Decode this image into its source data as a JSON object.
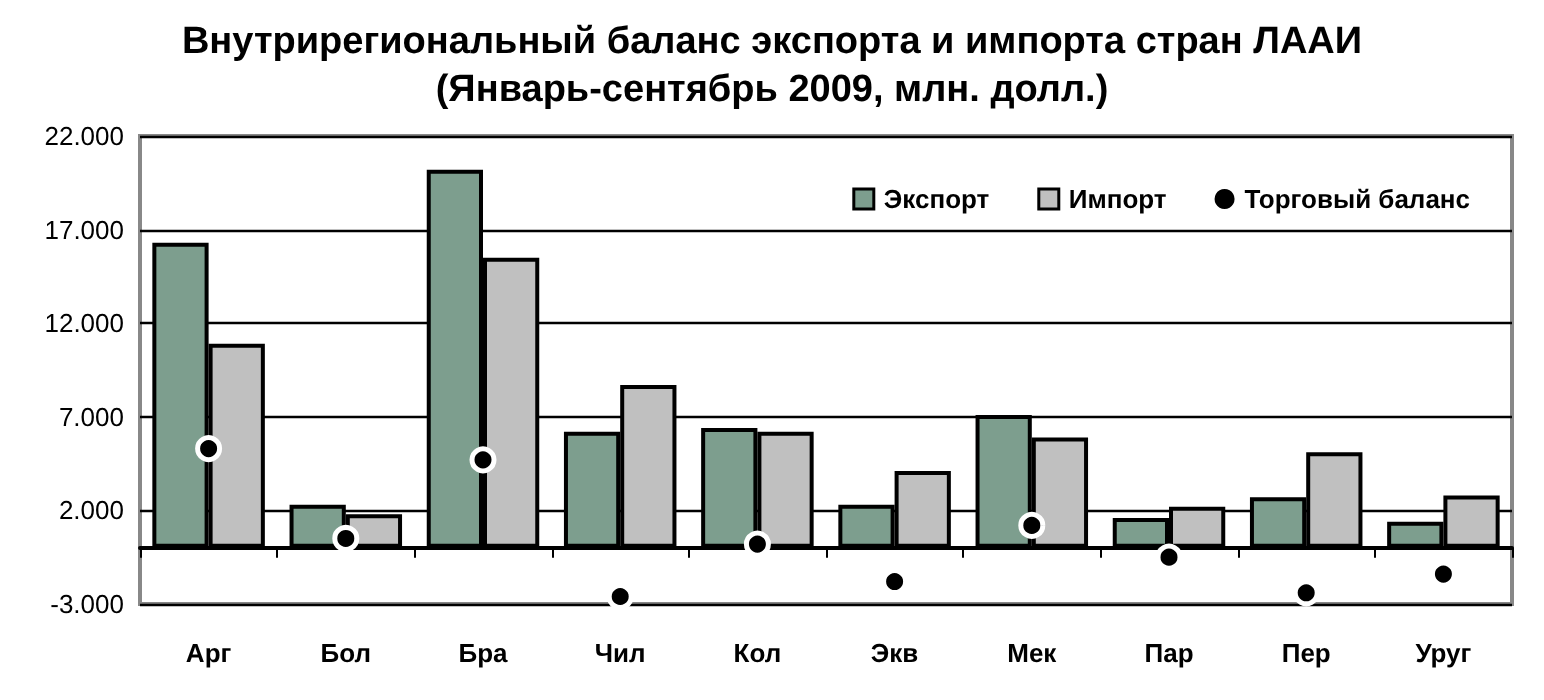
{
  "chart_data": {
    "type": "bar",
    "title": "Внутрирегиональный баланс экспорта и импорта стран ЛААИ\n(Январь-сентябрь 2009, млн. долл.)",
    "categories": [
      "Арг",
      "Бол",
      "Бра",
      "Чил",
      "Кол",
      "Экв",
      "Мек",
      "Пар",
      "Пер",
      "Уруг"
    ],
    "series": [
      {
        "name": "Экспорт",
        "color": "#7d9e8e",
        "values": [
          16300,
          2300,
          20200,
          6200,
          6400,
          2300,
          7100,
          1600,
          2700,
          1400
        ]
      },
      {
        "name": "Импорт",
        "color": "#c0c0c0",
        "values": [
          10900,
          1800,
          15500,
          8700,
          6200,
          4100,
          5900,
          2200,
          5100,
          2800
        ]
      },
      {
        "name": "Торговый баланс",
        "type": "scatter",
        "color": "#000000",
        "x": [
          "Арг",
          "Бол",
          "Бра",
          "Чил",
          "Кол",
          "Экв",
          "Мек",
          "Пар",
          "Пер",
          "Уруг"
        ],
        "values": [
          5300,
          500,
          4700,
          -2600,
          200,
          -1800,
          1200,
          -500,
          -2400,
          -1400
        ]
      }
    ],
    "ylim": [
      -3000,
      22000
    ],
    "yticks": [
      {
        "value": -3000,
        "label": "-3.000"
      },
      {
        "value": 2000,
        "label": "2.000"
      },
      {
        "value": 7000,
        "label": "7.000"
      },
      {
        "value": 12000,
        "label": "12.000"
      },
      {
        "value": 17000,
        "label": "17.000"
      },
      {
        "value": 22000,
        "label": "22.000"
      }
    ],
    "grid": "y",
    "legend": "top right",
    "marker": "circle"
  }
}
